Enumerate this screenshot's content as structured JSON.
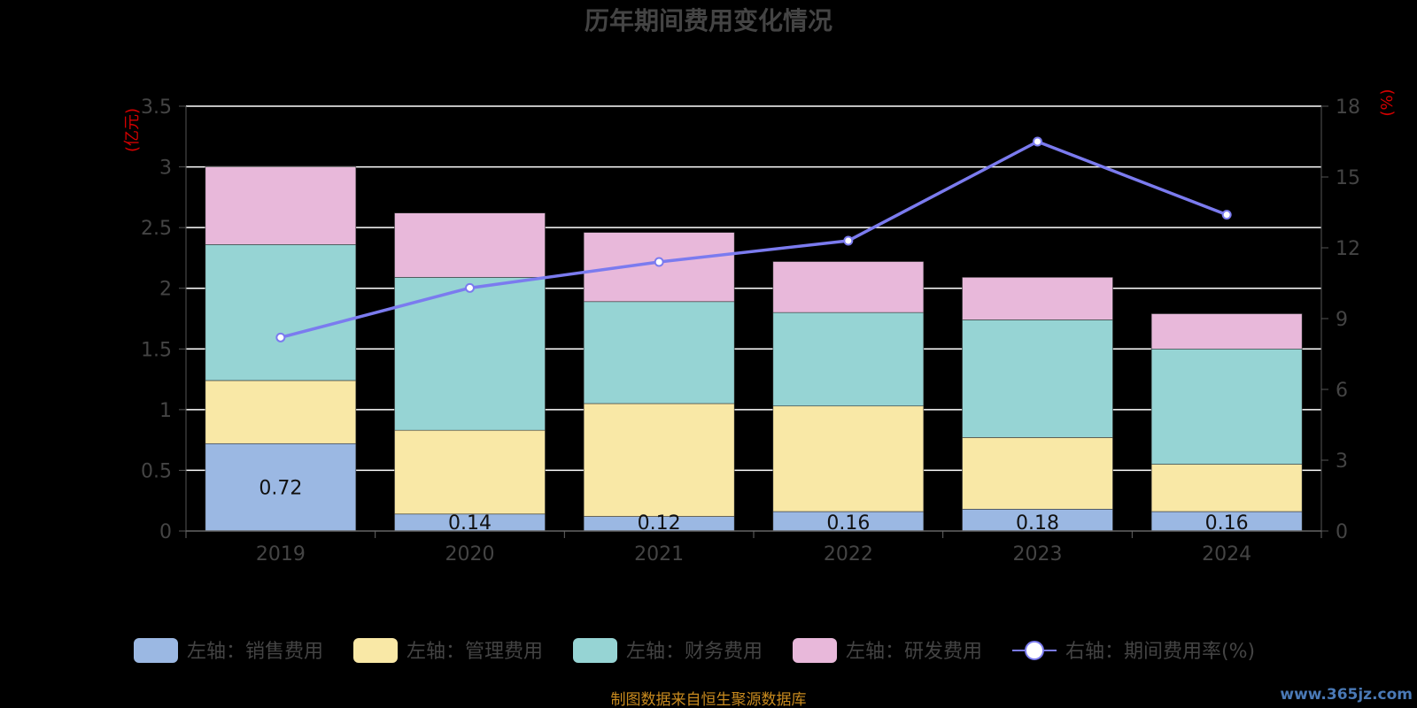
{
  "title": "历年期间费用变化情况",
  "left_unit": "(亿元)",
  "right_unit": "(%)",
  "source": "制图数据来自恒生聚源数据库",
  "watermark": "www.365jz.com",
  "colors": {
    "sales": "#9bb8e3",
    "admin": "#f9e8a6",
    "finance": "#96d4d4",
    "rd": "#e8b8da",
    "rate": "#7b7bef",
    "grid": "#ffffff"
  },
  "chart_data": {
    "type": "bar",
    "stacked": true,
    "categories": [
      "2019",
      "2020",
      "2021",
      "2022",
      "2023",
      "2024"
    ],
    "series": [
      {
        "name": "左轴：销售费用",
        "key": "sales",
        "axis": "left",
        "values": [
          0.72,
          0.14,
          0.12,
          0.16,
          0.18,
          0.16
        ],
        "show_labels": true
      },
      {
        "name": "左轴：管理费用",
        "key": "admin",
        "axis": "left",
        "values": [
          0.52,
          0.69,
          0.93,
          0.87,
          0.59,
          0.39
        ]
      },
      {
        "name": "左轴：财务费用",
        "key": "finance",
        "axis": "left",
        "values": [
          1.12,
          1.26,
          0.84,
          0.77,
          0.97,
          0.95
        ]
      },
      {
        "name": "左轴：研发费用",
        "key": "rd",
        "axis": "left",
        "values": [
          0.64,
          0.53,
          0.57,
          0.42,
          0.35,
          0.29
        ]
      },
      {
        "name": "右轴：期间费用率(%)",
        "key": "rate",
        "axis": "right",
        "type": "line",
        "values": [
          8.2,
          10.3,
          11.4,
          12.3,
          16.5,
          13.4
        ]
      }
    ],
    "left_axis": {
      "ylim": [
        0,
        3.5
      ],
      "ticks": [
        "0",
        "0.5",
        "1",
        "1.5",
        "2",
        "2.5",
        "3",
        "3.5"
      ]
    },
    "right_axis": {
      "ylim": [
        0,
        18
      ],
      "ticks": [
        "0",
        "3",
        "6",
        "9",
        "12",
        "15",
        "18"
      ]
    },
    "grid": true,
    "legend_position": "bottom"
  }
}
